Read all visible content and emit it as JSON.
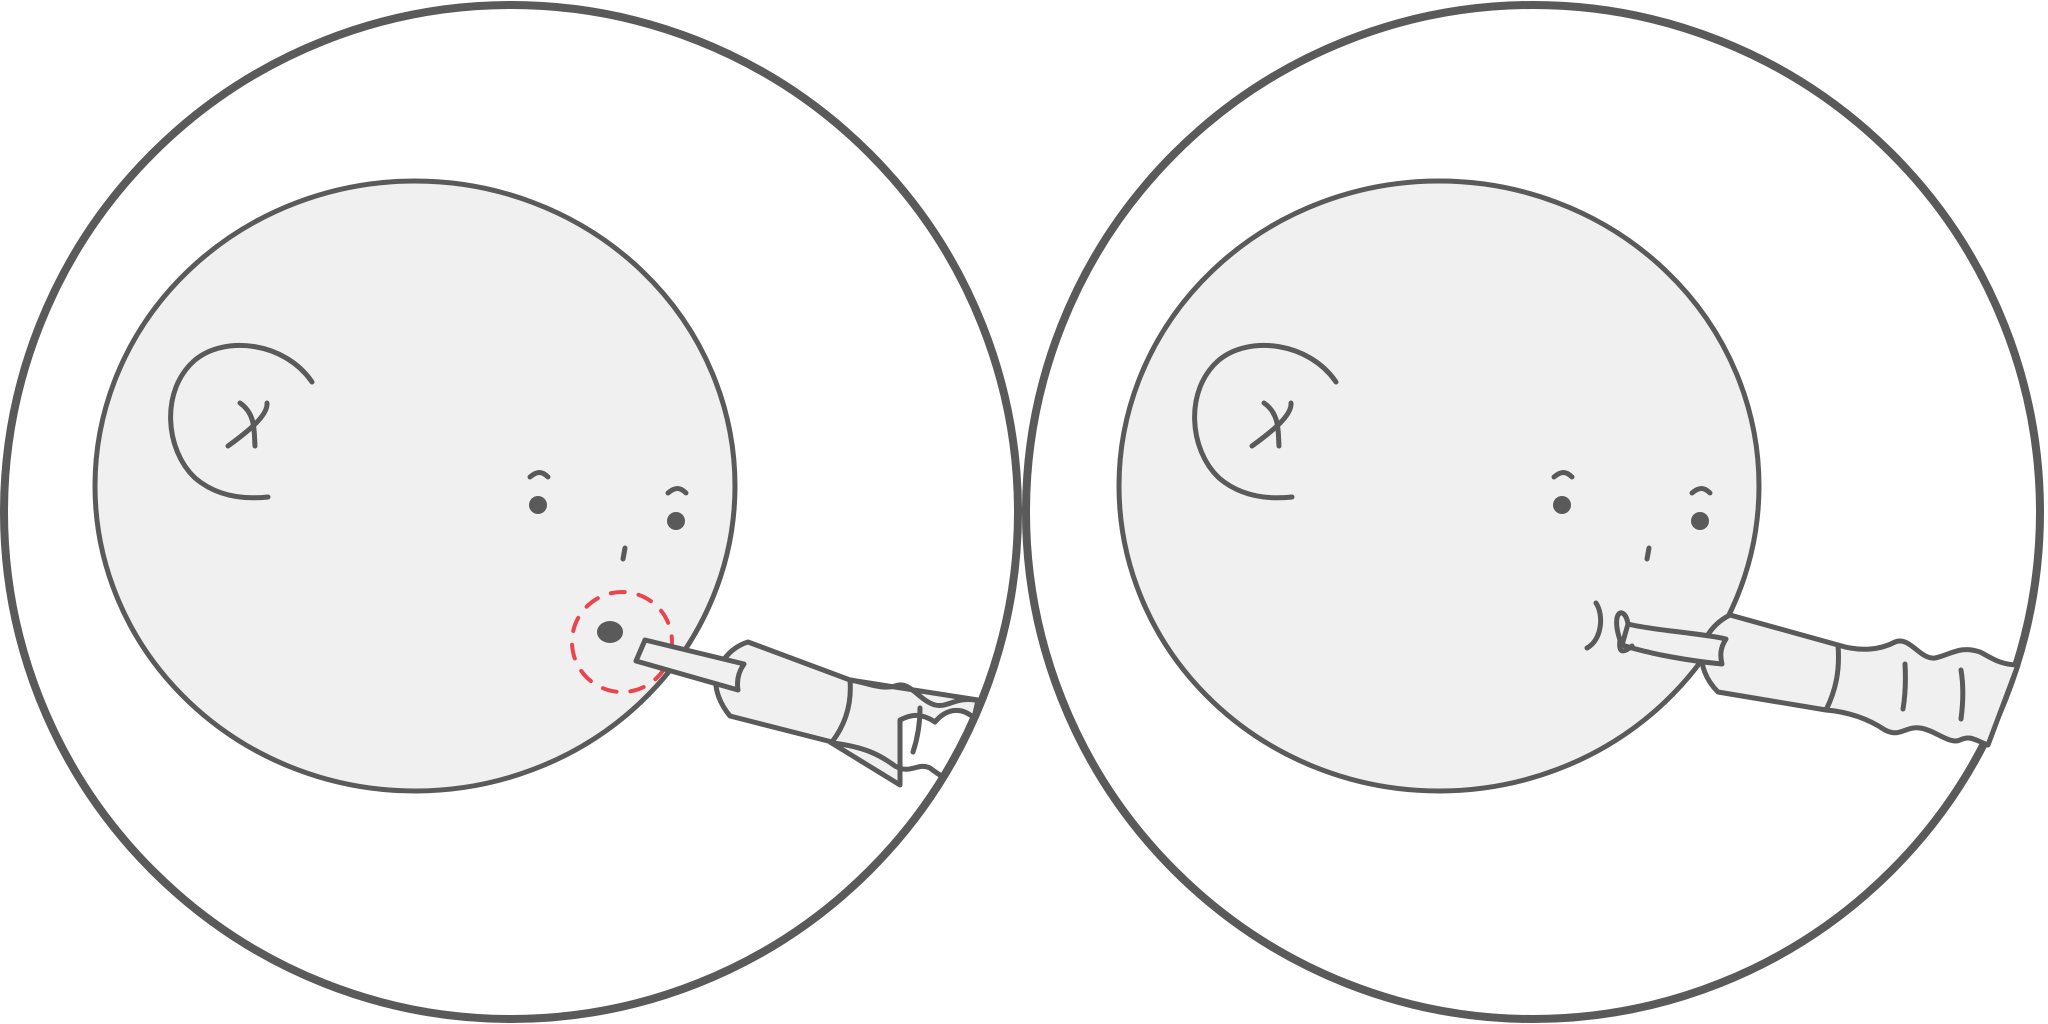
{
  "figure": {
    "panels": [
      {
        "id": "before",
        "state": "target-marked",
        "highlight_color": "#e8454d"
      },
      {
        "id": "after",
        "state": "target-removed"
      }
    ],
    "colors": {
      "stroke": "#5a5a5a",
      "face_fill": "#f0f0f0",
      "background": "#ffffff",
      "highlight": "#e8454d"
    },
    "icons": [
      "face-outline",
      "ear-icon",
      "eye-icon",
      "nose-icon",
      "mole-dot",
      "laser-handpiece-icon"
    ]
  }
}
